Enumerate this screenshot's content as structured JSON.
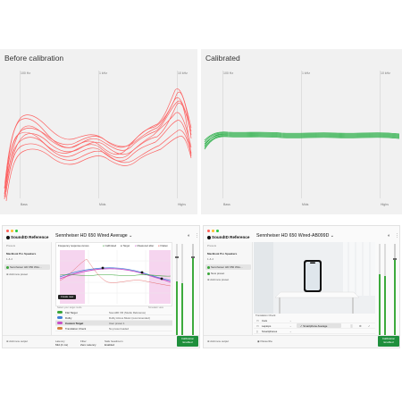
{
  "before_panel": {
    "title": "Before calibration",
    "freq_labels": [
      "100 Hz",
      "1 kHz",
      "10 kHz"
    ],
    "band_labels": [
      "Bass",
      "Mids",
      "Highs"
    ],
    "curve_color": "#ff4a4a"
  },
  "after_panel": {
    "title": "Calibrated",
    "freq_labels": [
      "100 Hz",
      "1 kHz",
      "10 kHz"
    ],
    "band_labels": [
      "Bass",
      "Mids",
      "Highs"
    ],
    "curve_color": "#1aaa3a"
  },
  "app_left": {
    "brand": "SoundID Reference",
    "headphone": "Sennheiser HD 650 Wired Average",
    "presets_label": "Presets",
    "sidebar": [
      "MacBook Pro Speakers",
      "Sennheiser HD 650 Wire...",
      "Add new preset"
    ],
    "plot_title": "Frequency response curves",
    "legend": [
      "Calibrated",
      "Target",
      "Measured after",
      "Flatten"
    ],
    "create_preset": "Create new",
    "table_head": [
      "Select your target mode",
      "Simulator view"
    ],
    "rows": [
      {
        "name": "Flat Target",
        "desc": "SoundID VR (Studio Reference)",
        "color": "#3aa53a"
      },
      {
        "name": "Dolby",
        "desc": "Dolby Atmos Music (recommended)",
        "color": "#3f7fd6"
      },
      {
        "name": "Custom Target",
        "desc": "User preset 1",
        "color": "#c84ec8"
      },
      {
        "name": "Translation Check",
        "desc": "No preset loaded",
        "color": "#d6823f"
      }
    ],
    "bottom_labels": [
      "Add new output",
      "Latency",
      "Filter",
      "Safe headroom"
    ],
    "bottom_values": [
      "Mid (4 ms)",
      "Zero Latency",
      "Enabled"
    ],
    "calib_btn": [
      "Calibration",
      "Enabled"
    ]
  },
  "app_right": {
    "brand": "SoundID Reference",
    "headphone": "Sennheiser HD 650 Wired-AB099D",
    "presets_label": "Presets",
    "sidebar": [
      "MacBook Pro Speakers",
      "Sennheiser HD 650 Wire...",
      "New preset",
      "Add new preset"
    ],
    "list_head": "Translation Check",
    "devices": [
      "Cars",
      "Laptops",
      "Smartphones",
      "TVs"
    ],
    "selected_device": "Smartphone Average",
    "bottom_labels": [
      "Add new output",
      "Passerthe"
    ],
    "calib_btn": [
      "Calibration",
      "Enabled"
    ]
  }
}
